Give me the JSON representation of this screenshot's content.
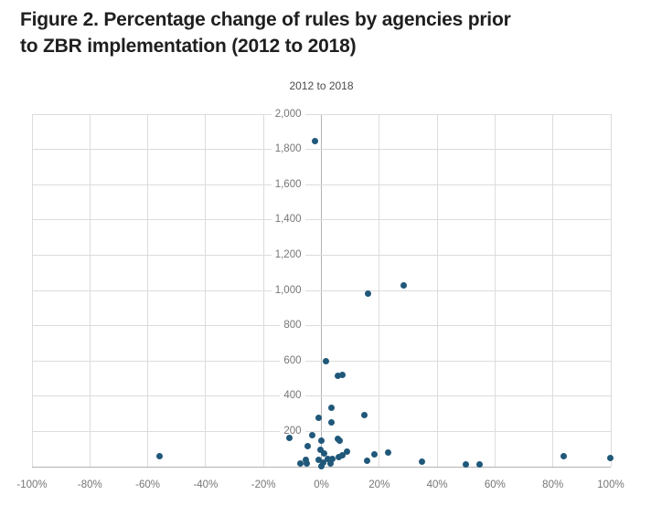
{
  "figure": {
    "title_lines": [
      "Figure 2. Percentage change of rules by agencies prior",
      "to ZBR implementation (2012 to 2018)"
    ],
    "subtitle": "2012 to 2018"
  },
  "colors": {
    "point": "#20587a",
    "grid": "#dcdcdc",
    "axis_line": "#b3b3b3",
    "tick_label": "#767676",
    "title": "#1f1f1f",
    "subtitle": "#4a4a4a"
  },
  "chart_data": {
    "type": "scatter",
    "title": "2012 to 2018",
    "xlabel": "",
    "ylabel": "",
    "xlim": [
      -100,
      100
    ],
    "ylim": [
      0,
      2000
    ],
    "grid": true,
    "legend": "none",
    "x_ticks": [
      {
        "v": -100,
        "label": "-100%"
      },
      {
        "v": -80,
        "label": "-80%"
      },
      {
        "v": -60,
        "label": "-60%"
      },
      {
        "v": -40,
        "label": "-40%"
      },
      {
        "v": -20,
        "label": "-20%"
      },
      {
        "v": 0,
        "label": "0%"
      },
      {
        "v": 20,
        "label": "20%"
      },
      {
        "v": 40,
        "label": "40%"
      },
      {
        "v": 60,
        "label": "60%"
      },
      {
        "v": 80,
        "label": "80%"
      },
      {
        "v": 100,
        "label": "100%"
      }
    ],
    "y_ticks": [
      {
        "v": 200,
        "label": "200"
      },
      {
        "v": 400,
        "label": "400"
      },
      {
        "v": 600,
        "label": "600"
      },
      {
        "v": 800,
        "label": "800"
      },
      {
        "v": 1000,
        "label": "1,000"
      },
      {
        "v": 1200,
        "label": "1,200"
      },
      {
        "v": 1400,
        "label": "1,400"
      },
      {
        "v": 1600,
        "label": "1,600"
      },
      {
        "v": 1800,
        "label": "1,800"
      },
      {
        "v": 2000,
        "label": "2,000"
      }
    ],
    "points": [
      [
        -56,
        62
      ],
      [
        -11,
        163
      ],
      [
        -7.4,
        18
      ],
      [
        -5.3,
        38
      ],
      [
        -4.9,
        20
      ],
      [
        -4.6,
        116
      ],
      [
        -3.2,
        180
      ],
      [
        -2.1,
        1848
      ],
      [
        -1.0,
        276
      ],
      [
        -0.8,
        40
      ],
      [
        -0.3,
        95
      ],
      [
        0.0,
        150
      ],
      [
        0.1,
        5
      ],
      [
        0.6,
        24
      ],
      [
        1.1,
        77
      ],
      [
        1.5,
        600
      ],
      [
        2.1,
        46
      ],
      [
        3.2,
        17
      ],
      [
        3.4,
        334
      ],
      [
        3.5,
        252
      ],
      [
        3.9,
        42
      ],
      [
        5.6,
        156
      ],
      [
        5.7,
        514
      ],
      [
        5.9,
        52
      ],
      [
        6.4,
        146
      ],
      [
        7.2,
        521
      ],
      [
        7.4,
        65
      ],
      [
        8.8,
        87
      ],
      [
        15.0,
        291
      ],
      [
        15.9,
        33
      ],
      [
        16.0,
        981
      ],
      [
        18.2,
        70
      ],
      [
        23.0,
        82
      ],
      [
        28.3,
        1030
      ],
      [
        34.9,
        27
      ],
      [
        50.0,
        15
      ],
      [
        54.7,
        15
      ],
      [
        83.8,
        60
      ],
      [
        99.8,
        48
      ]
    ]
  }
}
